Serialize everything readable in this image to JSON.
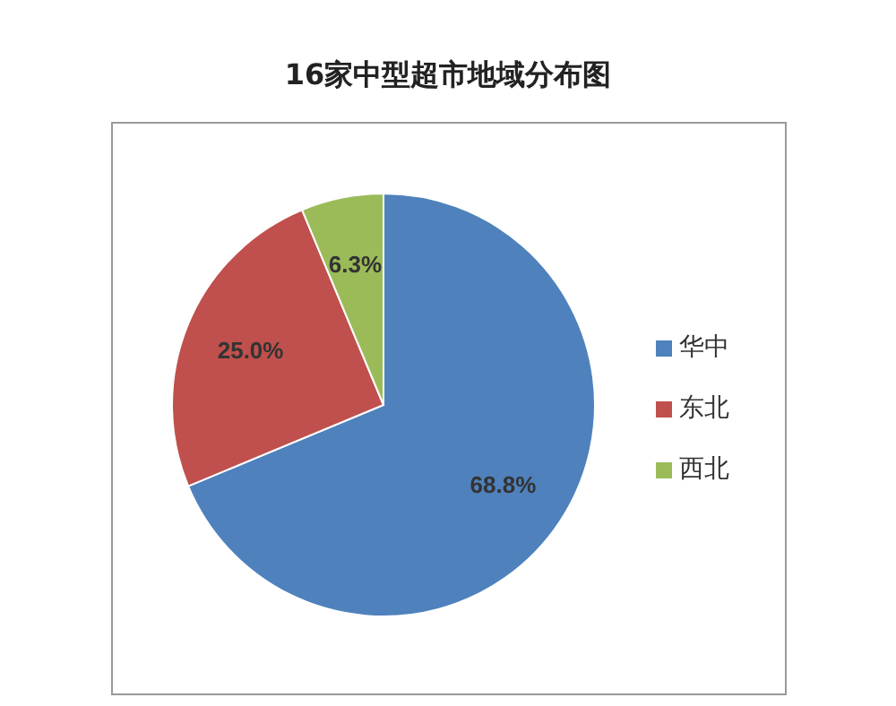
{
  "chart_data": {
    "type": "pie",
    "title": "16家中型超市地域分布图",
    "categories": [
      "华中",
      "东北",
      "西北"
    ],
    "values": [
      68.8,
      25.0,
      6.3
    ],
    "colors": [
      "#4f81bd",
      "#c0504d",
      "#9bbb59"
    ],
    "value_labels": [
      "68.8%",
      "25.0%",
      "6.3%"
    ],
    "legend": "right"
  }
}
